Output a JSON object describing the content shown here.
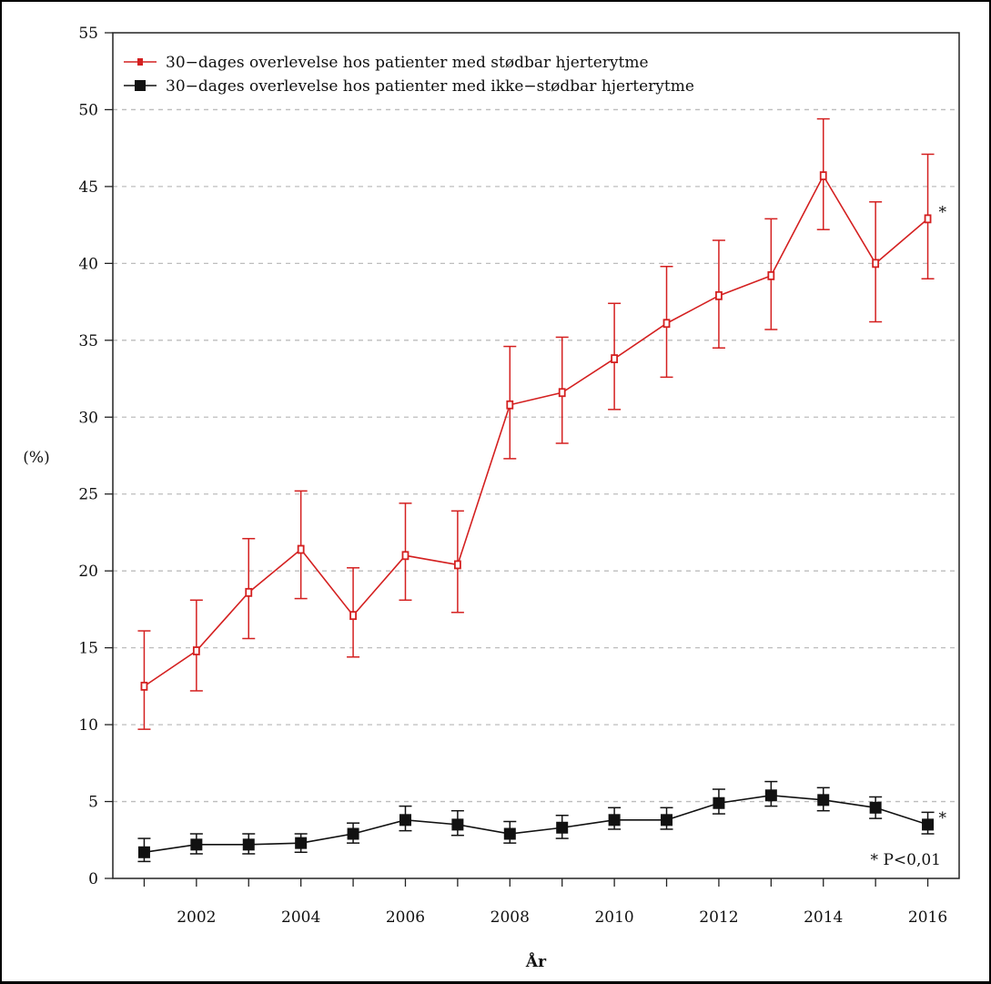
{
  "chart_data": {
    "type": "line",
    "xlabel": "År",
    "ylabel": "(%)",
    "xlim": [
      2000.4,
      2016.6
    ],
    "ylim": [
      0,
      55
    ],
    "yticks": [
      0,
      5,
      10,
      15,
      20,
      25,
      30,
      35,
      40,
      45,
      50,
      55
    ],
    "xticks": [
      2002,
      2004,
      2006,
      2008,
      2010,
      2012,
      2014,
      2016
    ],
    "grid": "horizontal dashed",
    "legend_position": "top-left",
    "x": [
      2001,
      2002,
      2003,
      2004,
      2005,
      2006,
      2007,
      2008,
      2009,
      2010,
      2011,
      2012,
      2013,
      2014,
      2015,
      2016
    ],
    "series": [
      {
        "name": "30−dages overlevelse hos patienter med stødbar hjerterytme",
        "color": "#d42020",
        "marker": "small-square",
        "values": [
          12.5,
          14.8,
          18.6,
          21.4,
          17.1,
          21.0,
          20.4,
          30.8,
          31.6,
          33.8,
          36.1,
          37.9,
          39.2,
          45.7,
          40.0,
          42.9
        ],
        "lower": [
          9.7,
          12.2,
          15.6,
          18.2,
          14.4,
          18.1,
          17.3,
          27.3,
          28.3,
          30.5,
          32.6,
          34.5,
          35.7,
          42.2,
          36.2,
          39.0
        ],
        "upper": [
          16.1,
          18.1,
          22.1,
          25.2,
          20.2,
          24.4,
          23.9,
          34.6,
          35.2,
          37.4,
          39.8,
          41.5,
          42.9,
          49.4,
          44.0,
          47.1
        ],
        "annotation": "*"
      },
      {
        "name": "30−dages overlevelse hos patienter med ikke−stødbar hjerterytme",
        "color": "#111111",
        "marker": "square",
        "values": [
          1.7,
          2.2,
          2.2,
          2.3,
          2.9,
          3.8,
          3.5,
          2.9,
          3.3,
          3.8,
          3.8,
          4.9,
          5.4,
          5.1,
          4.6,
          3.5
        ],
        "lower": [
          1.1,
          1.6,
          1.6,
          1.7,
          2.3,
          3.1,
          2.8,
          2.3,
          2.6,
          3.2,
          3.2,
          4.2,
          4.7,
          4.4,
          3.9,
          2.9
        ],
        "upper": [
          2.6,
          2.9,
          2.9,
          2.9,
          3.6,
          4.7,
          4.4,
          3.7,
          4.1,
          4.6,
          4.6,
          5.8,
          6.3,
          5.9,
          5.3,
          4.3
        ],
        "annotation": "*"
      }
    ],
    "note": "* P<0,01"
  }
}
